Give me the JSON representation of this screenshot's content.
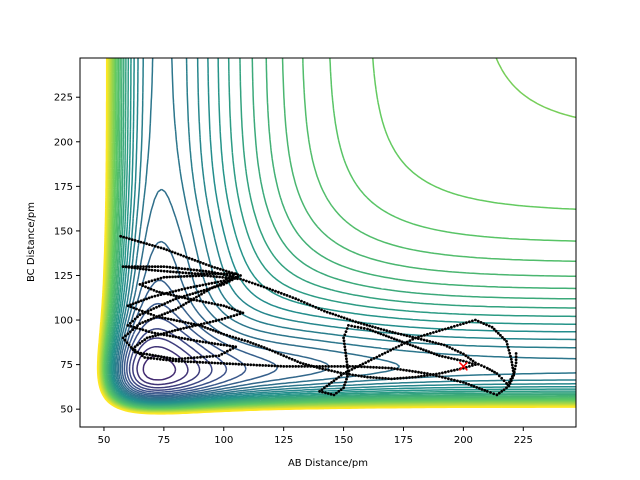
{
  "chart_data": {
    "type": "contour",
    "title": "",
    "xlabel": "AB Distance/pm",
    "ylabel": "BC Distance/pm",
    "xlim": [
      40,
      247
    ],
    "ylim": [
      40,
      247
    ],
    "x_ticks": [
      50,
      75,
      100,
      125,
      150,
      175,
      200,
      225
    ],
    "y_ticks": [
      50,
      75,
      100,
      125,
      150,
      175,
      200,
      225
    ],
    "colormap": "viridis",
    "colors": [
      "#440154",
      "#3b528b",
      "#21918c",
      "#5ec962",
      "#fde725"
    ],
    "grid": false,
    "legend": "none",
    "series": [
      {
        "type": "scatter",
        "color": "#000000",
        "points": [
          [
            57,
            147
          ],
          [
            75,
            140
          ],
          [
            95,
            130
          ],
          [
            107,
            125
          ],
          [
            100,
            120
          ],
          [
            80,
            112
          ],
          [
            65,
            103
          ],
          [
            60,
            97
          ],
          [
            70,
            93
          ],
          [
            90,
            88
          ],
          [
            105,
            85
          ],
          [
            98,
            80
          ],
          [
            80,
            78
          ],
          [
            63,
            82
          ],
          [
            58,
            90
          ],
          [
            65,
            98
          ],
          [
            80,
            106
          ],
          [
            95,
            118
          ],
          [
            105,
            124
          ],
          [
            95,
            127
          ],
          [
            75,
            130
          ],
          [
            58,
            130
          ],
          [
            70,
            128
          ],
          [
            88,
            126
          ],
          [
            105,
            126
          ],
          [
            100,
            122
          ],
          [
            85,
            118
          ],
          [
            70,
            113
          ],
          [
            60,
            108
          ],
          [
            72,
            102
          ],
          [
            90,
            97
          ],
          [
            100,
            92
          ],
          [
            110,
            88
          ],
          [
            118,
            84
          ],
          [
            125,
            80
          ],
          [
            132,
            76
          ],
          [
            140,
            73
          ],
          [
            150,
            70
          ],
          [
            160,
            68
          ],
          [
            170,
            67
          ],
          [
            180,
            68
          ],
          [
            190,
            70
          ],
          [
            200,
            73
          ],
          [
            205,
            75
          ],
          [
            200,
            77
          ],
          [
            190,
            80
          ],
          [
            180,
            85
          ],
          [
            170,
            90
          ],
          [
            160,
            95
          ],
          [
            152,
            97
          ],
          [
            150,
            90
          ],
          [
            151,
            80
          ],
          [
            152,
            70
          ],
          [
            150,
            62
          ],
          [
            146,
            58
          ],
          [
            140,
            60
          ],
          [
            150,
            70
          ],
          [
            165,
            80
          ],
          [
            180,
            90
          ],
          [
            195,
            96
          ],
          [
            205,
            100
          ],
          [
            212,
            96
          ],
          [
            218,
            88
          ],
          [
            220,
            78
          ],
          [
            221,
            70
          ],
          [
            218,
            62
          ],
          [
            214,
            58
          ],
          [
            210,
            60
          ],
          [
            200,
            65
          ],
          [
            185,
            70
          ],
          [
            170,
            73
          ],
          [
            155,
            74
          ],
          [
            140,
            74
          ],
          [
            125,
            74
          ],
          [
            110,
            75
          ],
          [
            95,
            76
          ],
          [
            80,
            77
          ],
          [
            67,
            79
          ],
          [
            62,
            84
          ],
          [
            68,
            90
          ],
          [
            82,
            95
          ],
          [
            98,
            100
          ],
          [
            108,
            104
          ],
          [
            100,
            108
          ],
          [
            85,
            112
          ],
          [
            72,
            116
          ],
          [
            65,
            120
          ],
          [
            75,
            124
          ],
          [
            92,
            125
          ],
          [
            107,
            123
          ],
          [
            118,
            118
          ],
          [
            130,
            112
          ],
          [
            142,
            105
          ],
          [
            155,
            99
          ],
          [
            168,
            94
          ],
          [
            180,
            90
          ],
          [
            192,
            86
          ],
          [
            200,
            81
          ],
          [
            205,
            76
          ],
          [
            210,
            73
          ],
          [
            214,
            70
          ],
          [
            217,
            66
          ],
          [
            219,
            63
          ],
          [
            221,
            69
          ],
          [
            222,
            76
          ],
          [
            222,
            83
          ]
        ]
      }
    ],
    "markers": [
      {
        "shape": "x",
        "color": "#ff0000",
        "x": 200,
        "y": 74
      }
    ]
  }
}
